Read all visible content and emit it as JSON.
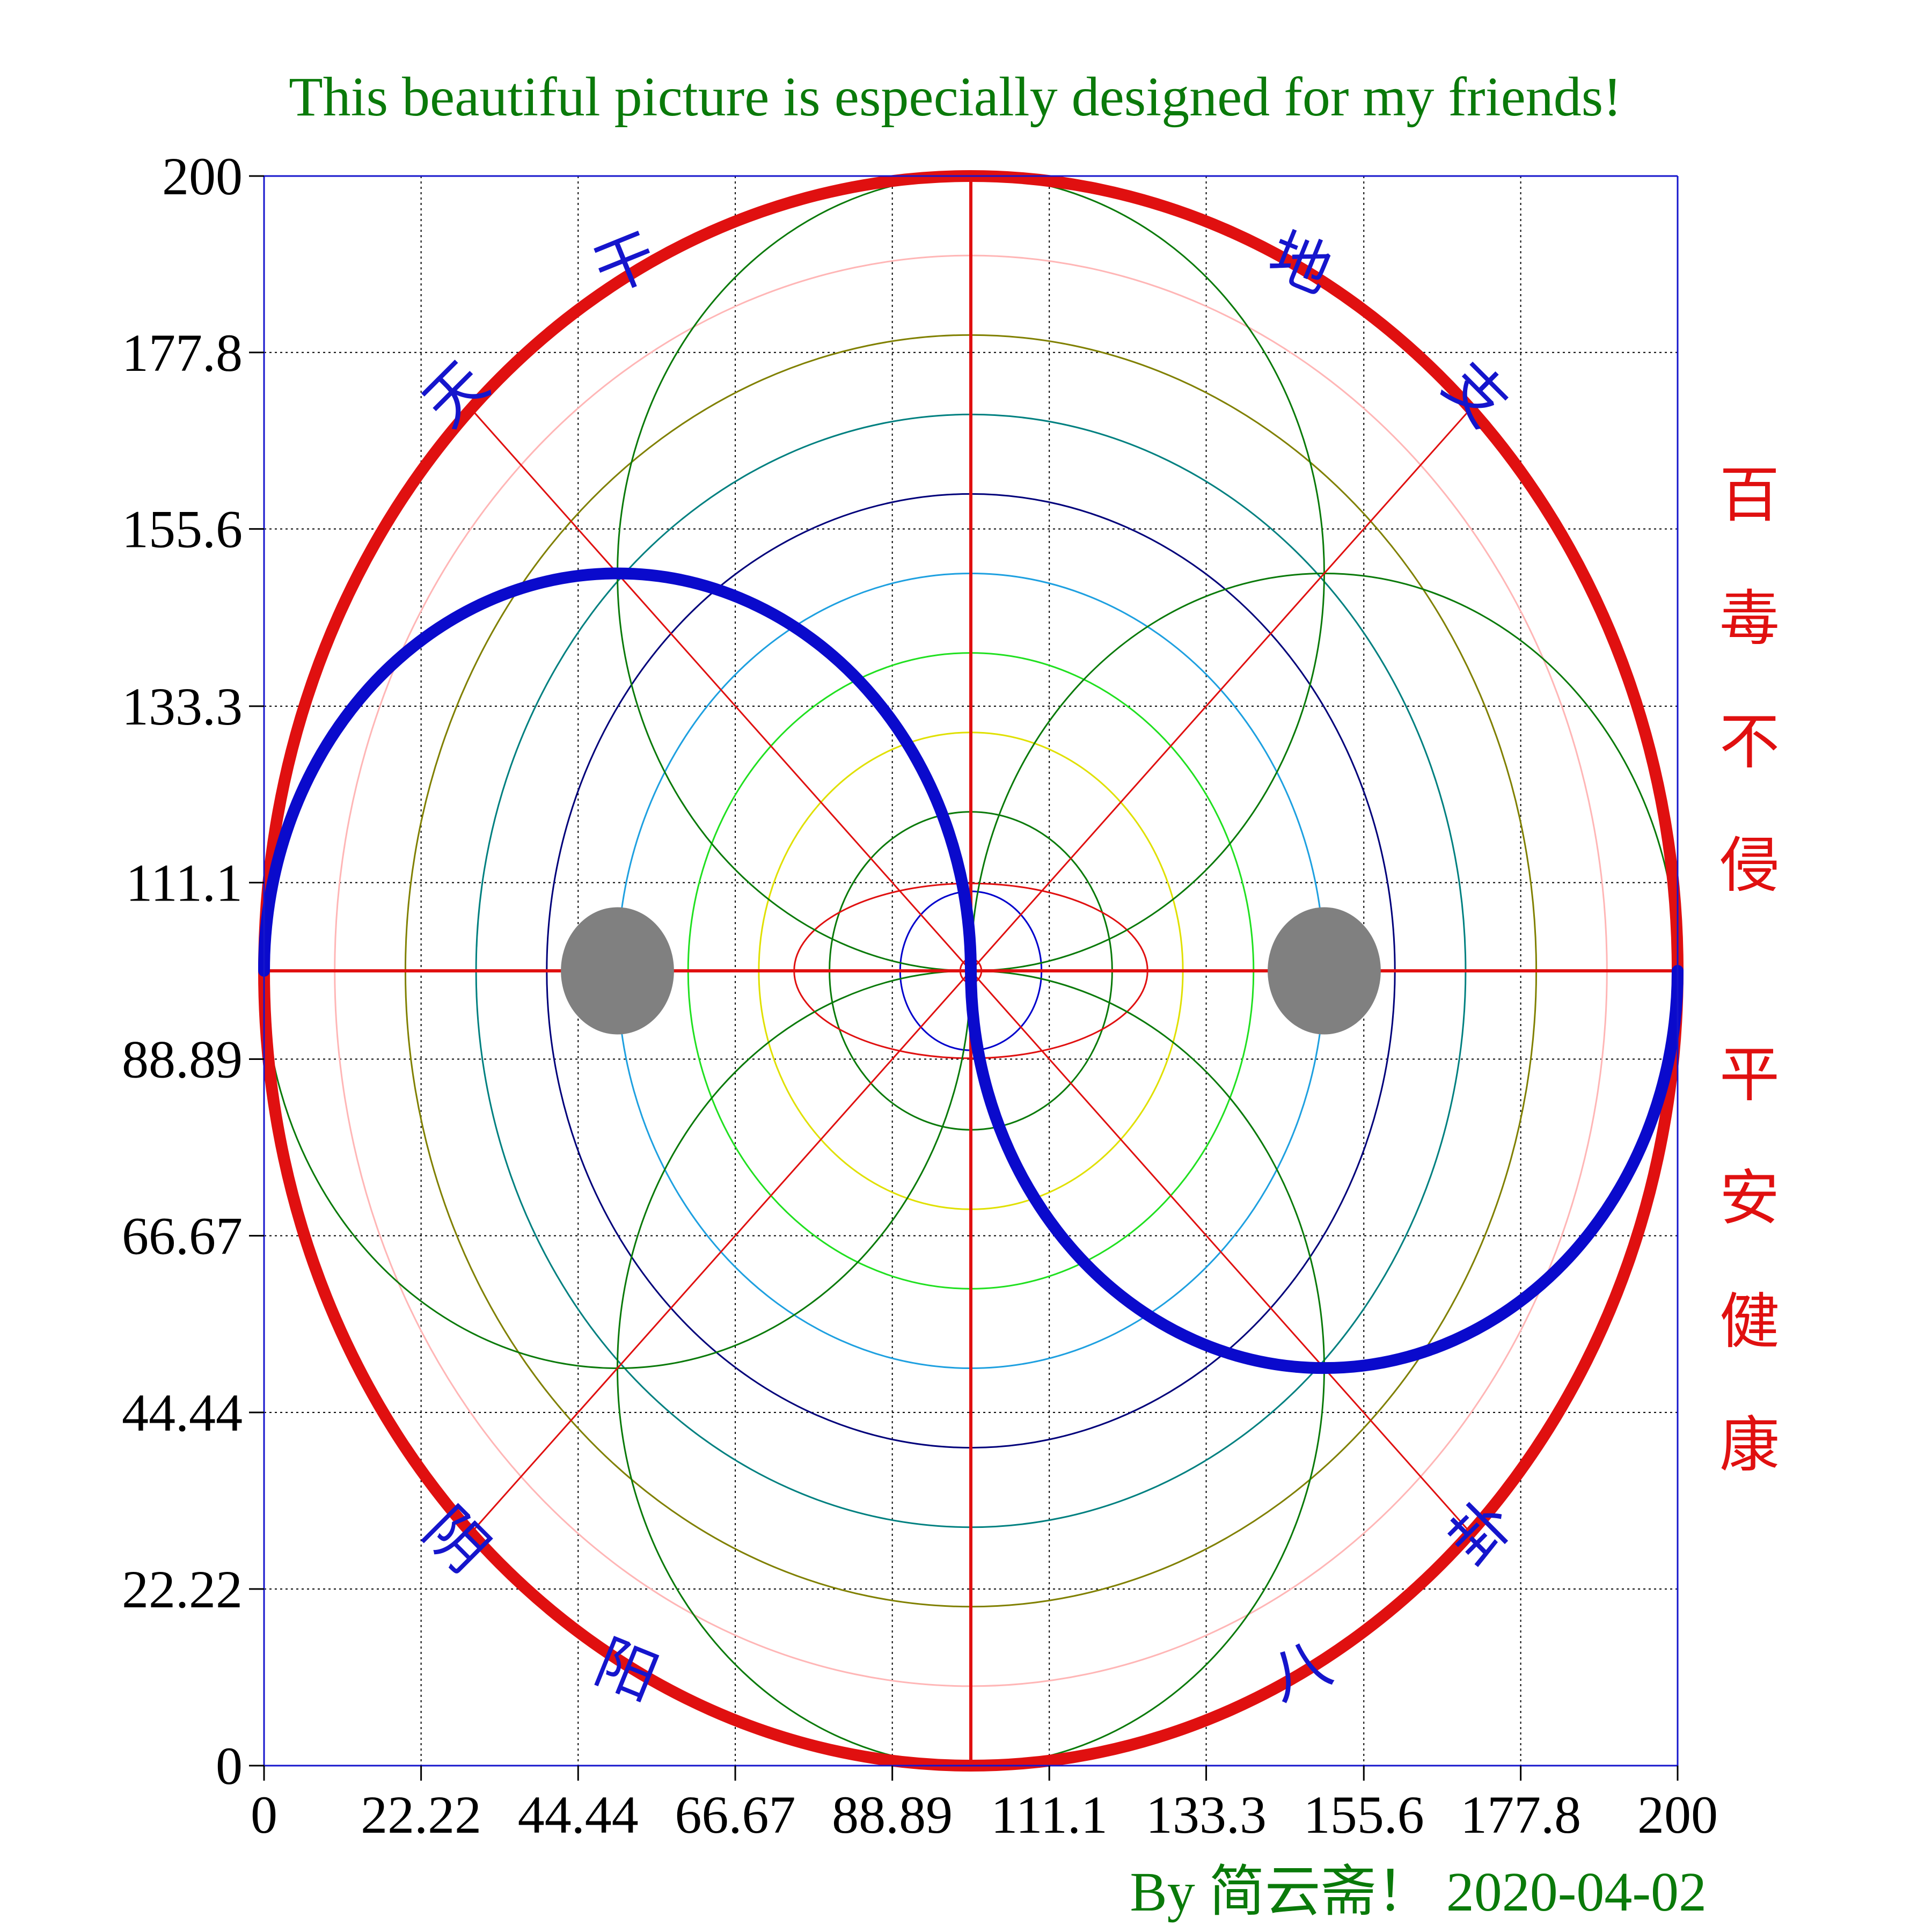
{
  "title": "This beautiful picture is especially designed for my friends!",
  "credit": "By 简云斋！ 2020-04-02",
  "side_text": [
    "百",
    "毒",
    "不",
    "侵",
    "平",
    "安",
    "健",
    "康"
  ],
  "corner_chars": {
    "top_left": [
      "天",
      "干"
    ],
    "top_right": [
      "地",
      "支"
    ],
    "bottom_left": [
      "阴",
      "阳"
    ],
    "bottom_right": [
      "八",
      "卦"
    ]
  },
  "colors": {
    "title": "#0a7a0a",
    "axis": "#1515cc",
    "outer_circle": "#e01010",
    "yin_yang_curve": "#0a0acc",
    "dots": "#808080",
    "side_text": "#e01010",
    "corner_text": "#1515cc"
  },
  "chart_data": {
    "type": "line",
    "xlim": [
      0,
      200
    ],
    "ylim": [
      0,
      200
    ],
    "grid": true,
    "x_ticks": [
      0,
      22.22,
      44.44,
      66.67,
      88.89,
      111.1,
      133.3,
      155.6,
      177.8,
      200
    ],
    "x_tick_labels": [
      "0",
      "22.22",
      "44.44",
      "66.67",
      "88.89",
      "111.1",
      "133.3",
      "155.6",
      "177.8",
      "200"
    ],
    "y_ticks": [
      0,
      22.22,
      44.44,
      66.67,
      88.89,
      111.1,
      133.3,
      155.6,
      177.8,
      200
    ],
    "y_tick_labels": [
      "0",
      "22.22",
      "44.44",
      "66.67",
      "88.89",
      "111.1",
      "133.3",
      "155.6",
      "177.8",
      "200"
    ],
    "center": [
      100,
      100
    ],
    "outer_circle": {
      "cx": 100,
      "cy": 100,
      "r": 100,
      "color": "#e01010"
    },
    "concentric_circles": [
      {
        "r": 90,
        "color": "#ffb6b6"
      },
      {
        "r": 80,
        "color": "#808000"
      },
      {
        "r": 70,
        "color": "#008080"
      },
      {
        "r": 60,
        "color": "#00007a"
      },
      {
        "r": 50,
        "color": "#1ea0e0"
      },
      {
        "r": 40,
        "color": "#20e020"
      },
      {
        "r": 30,
        "color": "#e0e000"
      },
      {
        "r": 20,
        "color": "#0a7a0a"
      },
      {
        "r": 10,
        "color": "#0000cc"
      },
      {
        "r": 1.5,
        "color": "#e01010"
      }
    ],
    "ellipse": {
      "cx": 100,
      "cy": 100,
      "rx": 25,
      "ry": 11,
      "color": "#e01010"
    },
    "offset_circles": [
      {
        "cx": 100,
        "cy": 150,
        "r": 50,
        "color": "#0a7a0a"
      },
      {
        "cx": 150,
        "cy": 100,
        "r": 50,
        "color": "#0a7a0a"
      },
      {
        "cx": 100,
        "cy": 50,
        "r": 50,
        "color": "#0a7a0a"
      },
      {
        "cx": 50,
        "cy": 100,
        "r": 50,
        "color": "#0a7a0a"
      }
    ],
    "cross_lines": [
      {
        "x1": 100,
        "y1": 0,
        "x2": 100,
        "y2": 200,
        "color": "#e01010"
      },
      {
        "x1": 0,
        "y1": 100,
        "x2": 200,
        "y2": 100,
        "color": "#e01010"
      },
      {
        "x1": 29.3,
        "y1": 170.7,
        "x2": 170.7,
        "y2": 29.3,
        "color": "#e01010"
      },
      {
        "x1": 29.3,
        "y1": 29.3,
        "x2": 170.7,
        "y2": 170.7,
        "color": "#e01010"
      }
    ],
    "yin_yang_curve": [
      {
        "cx": 50,
        "cy": 100,
        "r": 50,
        "half": "upper",
        "color": "#0a0acc"
      },
      {
        "cx": 150,
        "cy": 100,
        "r": 50,
        "half": "lower",
        "color": "#0a0acc"
      }
    ],
    "dots": [
      {
        "cx": 50,
        "cy": 100,
        "r": 8,
        "color": "#808080"
      },
      {
        "cx": 150,
        "cy": 100,
        "r": 8,
        "color": "#808080"
      }
    ]
  }
}
